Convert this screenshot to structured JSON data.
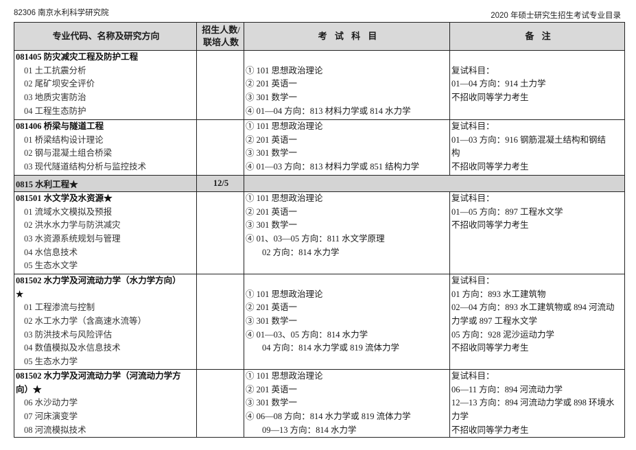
{
  "header": {
    "left": "82306 南京水利科学研究院",
    "right": "2020 年硕士研究生招生考试专业目录"
  },
  "columns": [
    "专业代码、名称及研究方向",
    "招生人数/联培人数",
    "考 试 科 目",
    "备 注"
  ],
  "column_header_lines": {
    "quota_line1": "招生人数/",
    "quota_line2": "联培人数"
  },
  "rows": [
    {
      "major": [
        "081405  防灾减灾工程及防护工程",
        "01 土工抗震分析",
        "02 尾矿坝安全评价",
        "03 地质灾害防治",
        "04 工程生态防护"
      ],
      "quota": "",
      "exams": [
        "① 101 思想政治理论",
        "② 201 英语一",
        "③ 301 数学一",
        "④  01—04 方向：813 材料力学或 814 水力学"
      ],
      "notes": [
        "复试科目：",
        "01—04 方向：914  土力学",
        "不招收同等学力考生"
      ]
    },
    {
      "major": [
        "081406 桥梁与隧道工程",
        "01 桥梁结构设计理论",
        "02 钢与混凝土组合桥梁",
        "03 现代隧道结构分析与监控技术"
      ],
      "quota": "",
      "exams": [
        "① 101 思想政治理论",
        "② 201 英语一",
        "③ 301 数学一",
        "④  01—03 方向：813 材料力学或 851 结构力学"
      ],
      "notes": [
        "复试科目：",
        "01—03  方向：916  钢筋混凝土结构和钢结",
        "构",
        "不招收同等学力考生"
      ]
    },
    {
      "section": true,
      "major": [
        "0815 水利工程★"
      ],
      "quota": "12/5"
    },
    {
      "major": [
        "081501 水文学及水资源★",
        "01 流域水文模拟及预报",
        "02 洪水水力学与防洪减灾",
        "03 水资源系统规划与管理",
        "04 水信息技术",
        "05 生态水文学"
      ],
      "quota": "",
      "exams": [
        "①  101 思想政治理论",
        "②  201 英语一",
        "③  301 数学一",
        "④  01、03—05 方向：811 水文学原理",
        "02 方向：814 水力学"
      ],
      "notes": [
        "复试科目：",
        "01—05 方向：897 工程水文学",
        "不招收同等学力考生"
      ]
    },
    {
      "major": [
        "081502  水力学及河流动力学（水力学方向）",
        "★",
        "01 工程渗流与控制",
        "02 水工水力学（含高速水流等）",
        "03 防洪技术与风险评估",
        "04 数值模拟及水信息技术",
        "05 生态水力学"
      ],
      "quota": "",
      "exams": [
        "① 101 思想政治理论",
        "② 201 英语一",
        "③ 301 数学一",
        "④ 01—03、05 方向：814 水力学",
        "04 方向：814 水力学或 819 流体力学"
      ],
      "notes": [
        "复试科目：",
        "01 方向：893 水工建筑物",
        "02—04 方向：893 水工建筑物或 894 河流动",
        "力学或 897 工程水文学",
        "05 方向：928 泥沙运动力学",
        "不招收同等学力考生"
      ]
    },
    {
      "major": [
        "081502  水力学及河流动力学（河流动力学方",
        "向）★",
        "06 水沙动力学",
        "07 河床演变学",
        "08 河流模拟技术"
      ],
      "quota": "",
      "exams": [
        "① 101 思想政治理论",
        "② 201 英语一",
        "③ 301 数学一",
        "④ 06—08 方向：814 水力学或 819 流体力学",
        "09—13 方向：814 水力学"
      ],
      "notes": [
        "复试科目：",
        "06—11 方向：894 河流动力学",
        "12—13 方向：894 河流动力学或 898 环境水",
        "力学",
        "不招收同等学力考生"
      ]
    }
  ]
}
